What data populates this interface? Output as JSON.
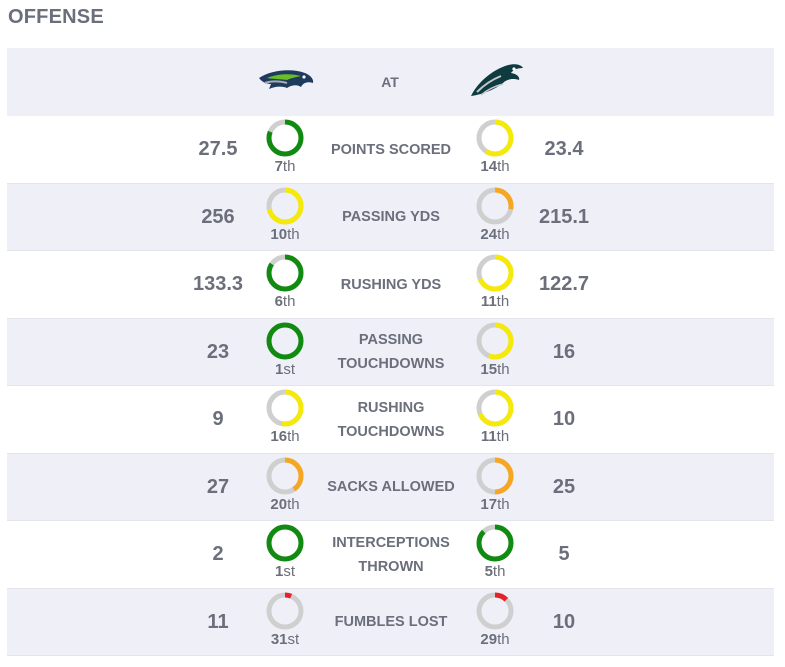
{
  "section_title": "OFFENSE",
  "header": {
    "at_label": "AT",
    "away_logo_icon": "seahawks-logo-icon",
    "home_logo_icon": "eagles-logo-icon"
  },
  "colors": {
    "top_tier": "#108a10",
    "mid_tier": "#f5e90a",
    "low_tier": "#f5a623",
    "bottom_tier": "#e8202a",
    "track": "#cfcfcf"
  },
  "stats": [
    {
      "label": "POINTS SCORED",
      "away_value": "27.5",
      "away_rank": "7",
      "away_suffix": "th",
      "home_value": "23.4",
      "home_rank": "14",
      "home_suffix": "th"
    },
    {
      "label": "PASSING YDS",
      "away_value": "256",
      "away_rank": "10",
      "away_suffix": "th",
      "home_value": "215.1",
      "home_rank": "24",
      "home_suffix": "th"
    },
    {
      "label": "RUSHING YDS",
      "away_value": "133.3",
      "away_rank": "6",
      "away_suffix": "th",
      "home_value": "122.7",
      "home_rank": "11",
      "home_suffix": "th"
    },
    {
      "label": "PASSING TOUCHDOWNS",
      "away_value": "23",
      "away_rank": "1",
      "away_suffix": "st",
      "home_value": "16",
      "home_rank": "15",
      "home_suffix": "th"
    },
    {
      "label": "RUSHING TOUCHDOWNS",
      "away_value": "9",
      "away_rank": "16",
      "away_suffix": "th",
      "home_value": "10",
      "home_rank": "11",
      "home_suffix": "th"
    },
    {
      "label": "SACKS ALLOWED",
      "away_value": "27",
      "away_rank": "20",
      "away_suffix": "th",
      "home_value": "25",
      "home_rank": "17",
      "home_suffix": "th"
    },
    {
      "label": "INTERCEPTIONS THROWN",
      "away_value": "2",
      "away_rank": "1",
      "away_suffix": "st",
      "home_value": "5",
      "home_rank": "5",
      "home_suffix": "th"
    },
    {
      "label": "FUMBLES LOST",
      "away_value": "11",
      "away_rank": "31",
      "away_suffix": "st",
      "home_value": "10",
      "home_rank": "29",
      "home_suffix": "th"
    }
  ]
}
